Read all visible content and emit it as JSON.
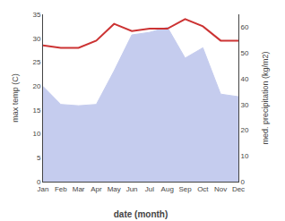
{
  "chart_data": {
    "type": "line",
    "categories": [
      "Jan",
      "Feb",
      "Mar",
      "Apr",
      "May",
      "Jun",
      "Jul",
      "Aug",
      "Sep",
      "Oct",
      "Nov",
      "Dec"
    ],
    "xlabel": "date (month)",
    "ylabel": "max temp (C)",
    "y2label": "med. precipitation (kg/m2)",
    "ylim": [
      0,
      35
    ],
    "yticks": [
      0,
      5,
      10,
      15,
      20,
      25,
      30,
      35
    ],
    "y2lim": [
      0,
      65
    ],
    "y2ticks": [
      0,
      10,
      20,
      30,
      40,
      50,
      60
    ],
    "grid": false,
    "series": [
      {
        "type": "area",
        "axis": "y2",
        "color": "#c5ccee",
        "values": [
          37.0,
          30.0,
          29.5,
          30.0,
          43.0,
          57.0,
          58.0,
          60.0,
          48.0,
          52.0,
          34.0,
          33.0
        ]
      },
      {
        "type": "line",
        "color": "#cc3333",
        "values": [
          28.5,
          28.0,
          28.0,
          29.5,
          33.0,
          31.5,
          32.0,
          32.0,
          34.0,
          32.5,
          29.5,
          29.5
        ]
      }
    ]
  }
}
